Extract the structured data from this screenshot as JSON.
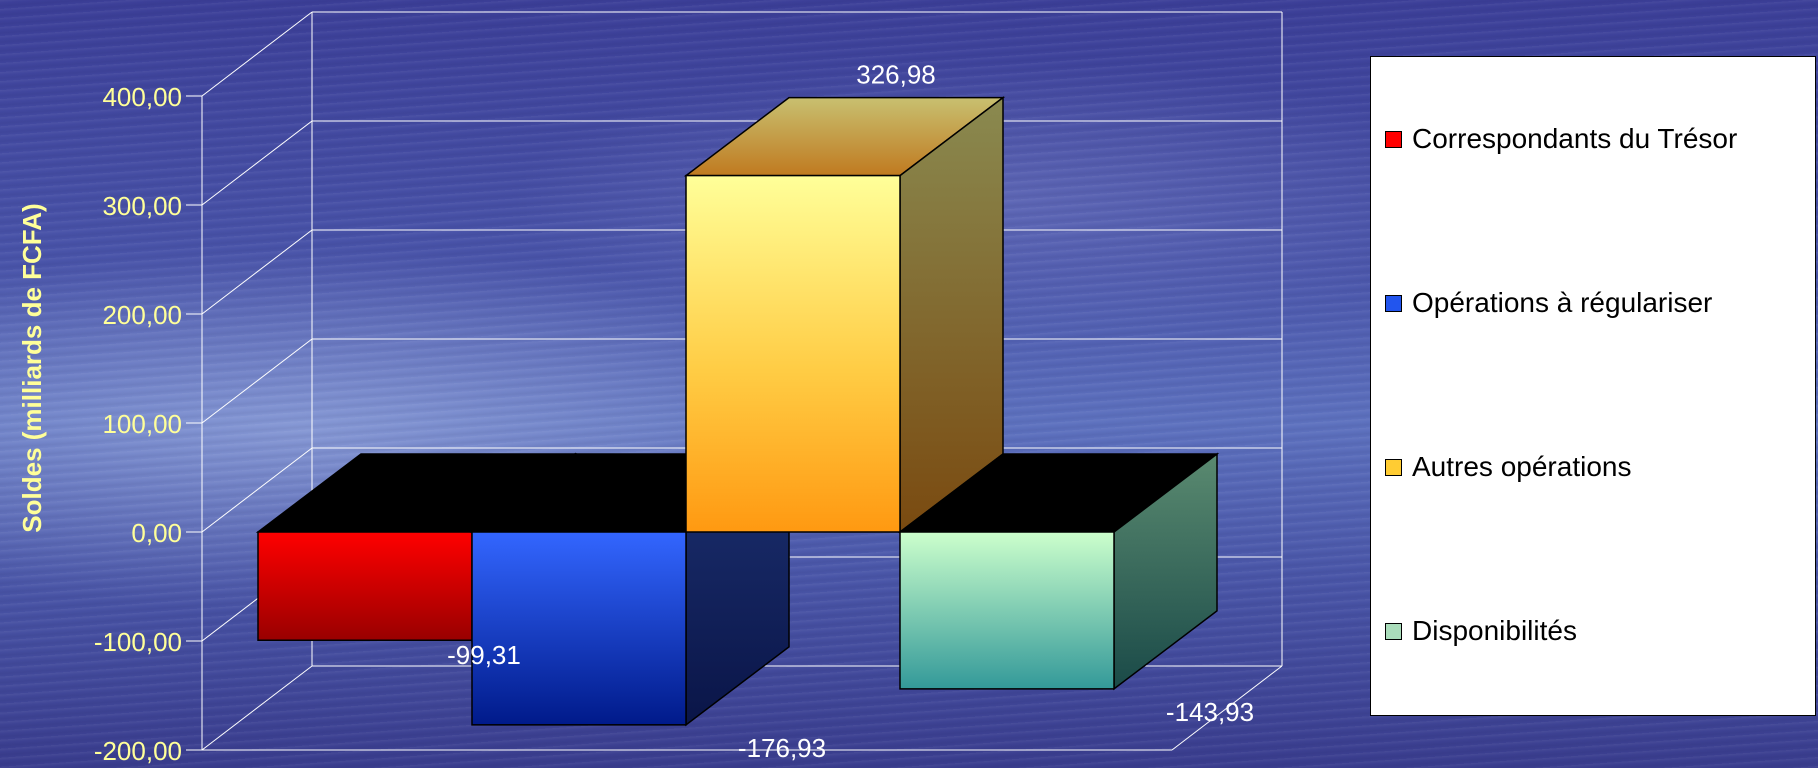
{
  "chart_data": {
    "type": "bar",
    "variant": "3d-columns",
    "title": "",
    "ylabel": "Soldes (milliards de FCFA)",
    "ylim": [
      -200,
      400
    ],
    "ytick_values": [
      -200,
      -100,
      0,
      100,
      200,
      300,
      400
    ],
    "ytick_labels": [
      "-200,00",
      "-100,00",
      "0,00",
      "100,00",
      "200,00",
      "300,00",
      "400,00"
    ],
    "grid": true,
    "legend_position": "right",
    "series": [
      {
        "name": "Correspondants du Trésor",
        "value": -99.31,
        "label": "-99,31",
        "color": "#ff0000"
      },
      {
        "name": "Opérations à régulariser",
        "value": -176.93,
        "label": "-176,93",
        "color": "#2255ee"
      },
      {
        "name": "Autres opérations",
        "value": 326.98,
        "label": "326,98",
        "color": "#ffcc33"
      },
      {
        "name": "Disponibilités",
        "value": -143.93,
        "label": "-143,93",
        "color": "#aaddbb"
      }
    ]
  },
  "colors": {
    "tick_label": "#ffff99",
    "axis_title": "#ffff99",
    "data_label": "#ffffff",
    "grid": "#ffffff"
  }
}
